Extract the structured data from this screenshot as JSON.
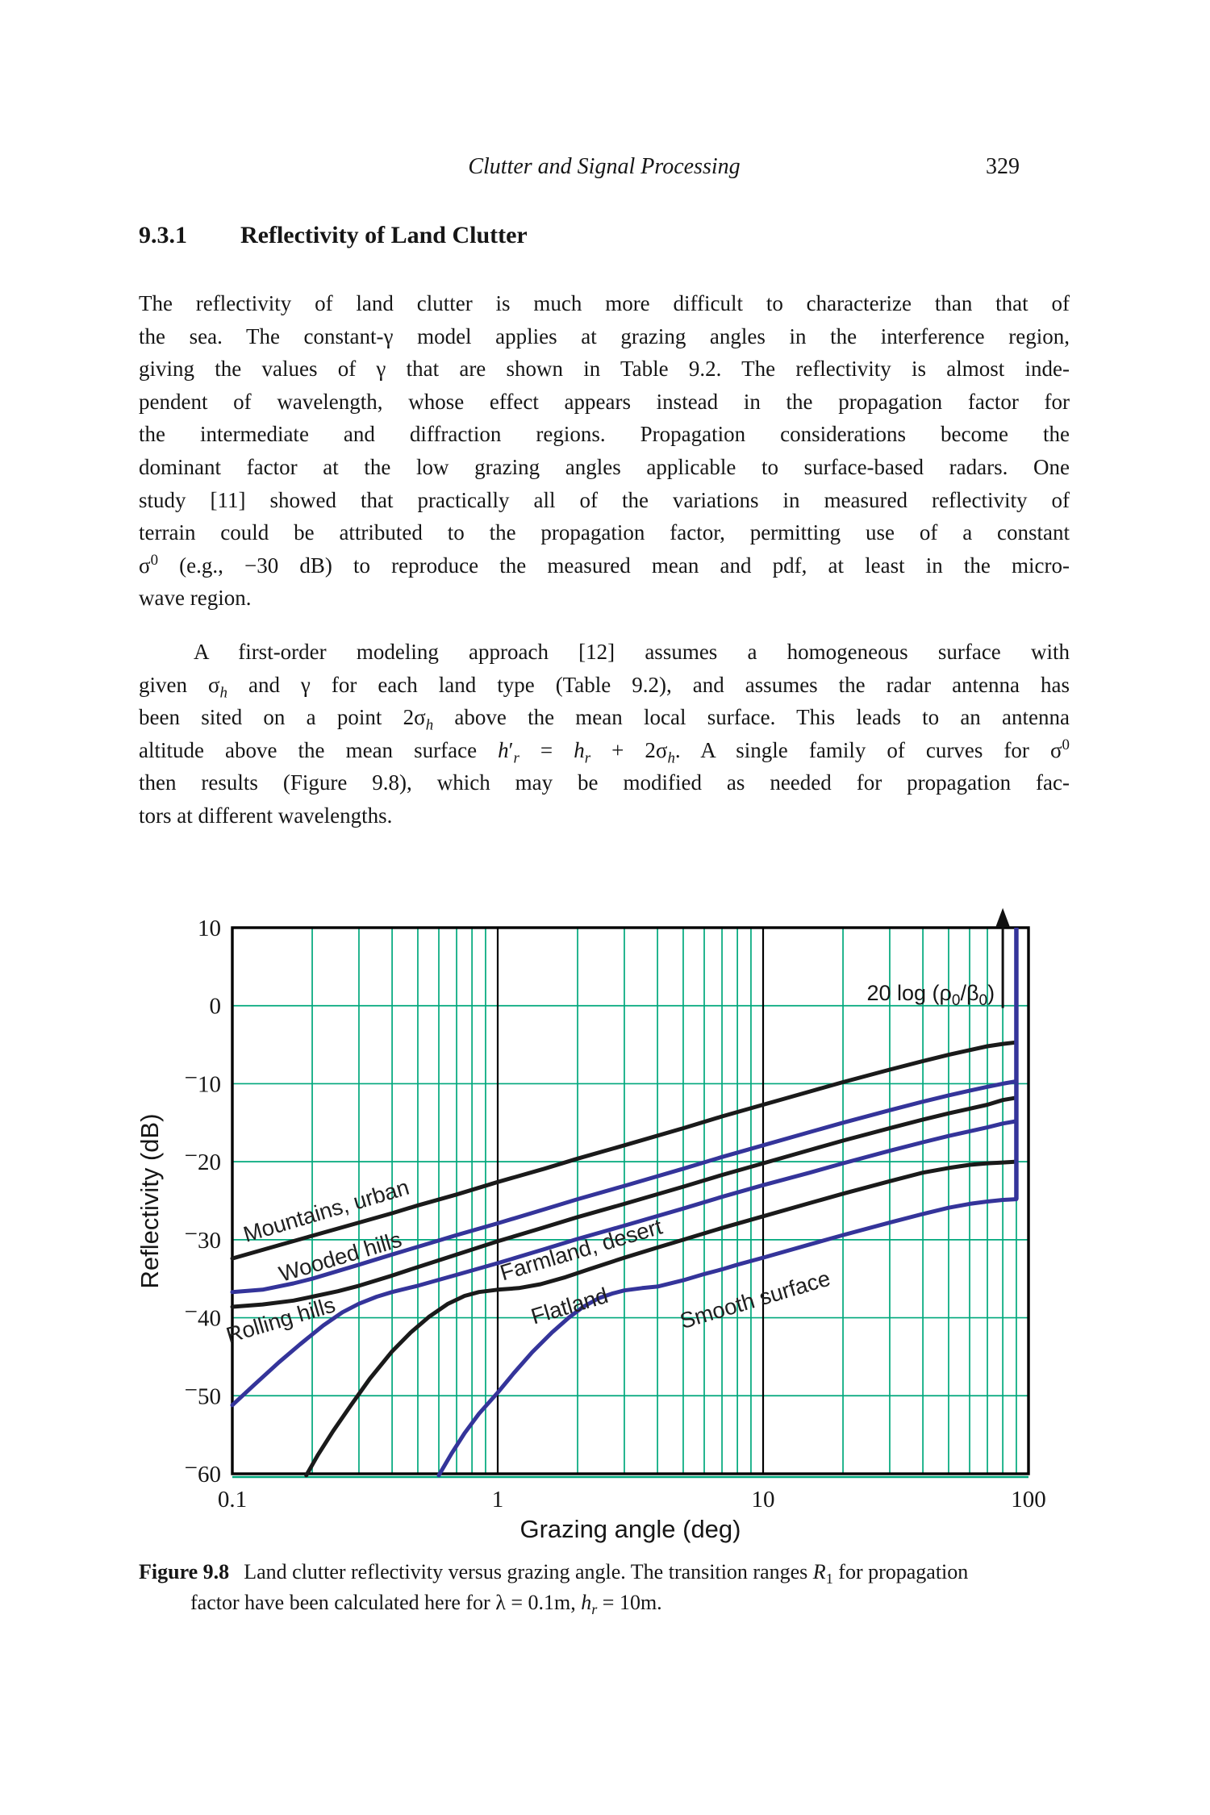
{
  "page_header": {
    "running_title": "Clutter and Signal Processing",
    "page_number": "329"
  },
  "section": {
    "number": "9.3.1",
    "title": "Reflectivity of Land Clutter"
  },
  "body": {
    "paragraph1_lines": [
      "The reflectivity of land clutter is much more difficult to characterize than that of",
      "the sea. The constant-γ model applies at grazing angles in the interference region,",
      "giving the values of γ that are shown in Table 9.2. The reflectivity is almost inde-",
      "pendent of wavelength, whose effect appears instead in the propagation factor for",
      "the intermediate and diffraction regions. Propagation considerations become the",
      "dominant factor at the low grazing angles applicable to surface-based radars. One",
      "study [11] showed that practically all of the variations in measured reflectivity of",
      "terrain could be attributed to the propagation factor, permitting use of a constant",
      "σ<sup>0</sup> (e.g., −30 dB) to reproduce the measured mean and pdf, at least in the micro-",
      "wave region."
    ],
    "paragraph2_lines": [
      "A first-order modeling approach [12] assumes a homogeneous surface with",
      "given σ<sub><i>h</i></sub> and γ for each land type (Table 9.2), and assumes the radar antenna has",
      "been sited on a point 2σ<sub><i>h</i></sub> above the mean local surface. This leads to an antenna",
      "altitude above the mean surface <i>h</i>′<sub><i>r</i></sub> = <i>h</i><sub><i>r</i></sub> + 2σ<sub><i>h</i></sub>. A single family of curves for σ<sup>0</sup>",
      "then results (Figure 9.8), which may be modified as needed for propagation fac-",
      "tors at different wavelengths."
    ]
  },
  "caption": {
    "label": "Figure 9.8",
    "line1": "Land clutter reflectivity versus grazing angle. The transition ranges <i>R</i><sub>1</sub> for propagation",
    "line2": "factor have been calculated here for λ = 0.1m, <i>h</i><sub><i>r</i></sub> = 10m."
  },
  "chart_data": {
    "type": "line",
    "title": "",
    "xlabel": "Grazing angle (deg)",
    "ylabel": "Reflectivity (dB)",
    "x_scale": "log",
    "xlim": [
      0.1,
      100
    ],
    "ylim": [
      -60,
      10
    ],
    "x_ticks": [
      "0.1",
      "1",
      "10",
      "100"
    ],
    "y_ticks": [
      10,
      0,
      -10,
      -20,
      -30,
      -40,
      -50,
      -60
    ],
    "grid": {
      "color": "#00a87c",
      "h_lines": [
        0,
        -10,
        -20,
        -30,
        -40,
        -50
      ],
      "minor_multiples": [
        2,
        3,
        4,
        5,
        6,
        7,
        8,
        9
      ],
      "decade_lines": [
        1,
        10
      ],
      "decade_line_color": "#000000"
    },
    "colors": {
      "black_curve": "#1a1a1a",
      "navy_curve": "#34349a",
      "border": "#000000"
    },
    "annotation": {
      "text_parts": [
        {
          "t": "20 log (ρ"
        },
        {
          "t": "0",
          "sub": true
        },
        {
          "t": "/β"
        },
        {
          "t": "0",
          "sub": true
        },
        {
          "t": ")"
        }
      ],
      "arrow": {
        "x_deg": 80,
        "from_db": -0.3,
        "to_db": 8.8
      }
    },
    "right_jump_line": {
      "x_deg": 90,
      "from_db": -24.8,
      "to_db": 10
    },
    "series": [
      {
        "name": "Mountains, urban",
        "color": "black",
        "label_pos": {
          "deg": 0.23,
          "db": -27.2,
          "rot": -16.5
        },
        "points": [
          [
            0.1,
            -32.4
          ],
          [
            0.15,
            -30.7
          ],
          [
            0.2,
            -29.5
          ],
          [
            0.3,
            -27.8
          ],
          [
            0.4,
            -26.6
          ],
          [
            0.5,
            -25.6
          ],
          [
            0.7,
            -24.2
          ],
          [
            1,
            -22.6
          ],
          [
            1.5,
            -20.9
          ],
          [
            2,
            -19.6
          ],
          [
            3,
            -17.9
          ],
          [
            5,
            -15.7
          ],
          [
            7,
            -14.2
          ],
          [
            10,
            -12.7
          ],
          [
            15,
            -11.0
          ],
          [
            20,
            -9.8
          ],
          [
            30,
            -8.2
          ],
          [
            40,
            -7.1
          ],
          [
            50,
            -6.3
          ],
          [
            60,
            -5.7
          ],
          [
            70,
            -5.2
          ],
          [
            80,
            -4.9
          ],
          [
            90,
            -4.7
          ]
        ]
      },
      {
        "name": "Wooded hills",
        "color": "navy",
        "label_pos": {
          "deg": 0.26,
          "db": -33.1,
          "rot": -16.5
        },
        "points": [
          [
            0.1,
            -36.7
          ],
          [
            0.13,
            -36.4
          ],
          [
            0.17,
            -35.6
          ],
          [
            0.2,
            -35.0
          ],
          [
            0.3,
            -33.2
          ],
          [
            0.4,
            -31.9
          ],
          [
            0.5,
            -30.9
          ],
          [
            0.7,
            -29.4
          ],
          [
            1,
            -27.9
          ],
          [
            1.5,
            -26.1
          ],
          [
            2,
            -24.8
          ],
          [
            3,
            -23.1
          ],
          [
            5,
            -20.9
          ],
          [
            7,
            -19.4
          ],
          [
            10,
            -17.9
          ],
          [
            15,
            -16.2
          ],
          [
            20,
            -15.0
          ],
          [
            30,
            -13.4
          ],
          [
            40,
            -12.3
          ],
          [
            50,
            -11.5
          ],
          [
            60,
            -10.9
          ],
          [
            70,
            -10.4
          ],
          [
            80,
            -10.0
          ],
          [
            90,
            -9.7
          ]
        ]
      },
      {
        "name": "Rolling hills",
        "color": "black",
        "label_pos": {
          "deg": 0.155,
          "db": -41.2,
          "rot": -16.5
        },
        "points": [
          [
            0.1,
            -38.6
          ],
          [
            0.13,
            -38.3
          ],
          [
            0.17,
            -37.8
          ],
          [
            0.2,
            -37.3
          ],
          [
            0.25,
            -36.6
          ],
          [
            0.3,
            -35.9
          ],
          [
            0.4,
            -34.6
          ],
          [
            0.5,
            -33.5
          ],
          [
            0.7,
            -31.9
          ],
          [
            1,
            -30.2
          ],
          [
            1.5,
            -28.4
          ],
          [
            2,
            -27.1
          ],
          [
            3,
            -25.4
          ],
          [
            5,
            -23.2
          ],
          [
            7,
            -21.7
          ],
          [
            10,
            -20.2
          ],
          [
            15,
            -18.5
          ],
          [
            20,
            -17.3
          ],
          [
            30,
            -15.7
          ],
          [
            40,
            -14.6
          ],
          [
            50,
            -13.8
          ],
          [
            60,
            -13.2
          ],
          [
            70,
            -12.7
          ],
          [
            80,
            -12.1
          ],
          [
            90,
            -11.8
          ]
        ]
      },
      {
        "name": "Farmland, desert",
        "color": "navy",
        "label_pos": {
          "deg": 2.1,
          "db": -32.2,
          "rot": -16.5
        },
        "points": [
          [
            0.1,
            -51.2
          ],
          [
            0.12,
            -48.7
          ],
          [
            0.15,
            -45.7
          ],
          [
            0.18,
            -43.4
          ],
          [
            0.22,
            -41.0
          ],
          [
            0.26,
            -39.3
          ],
          [
            0.3,
            -38.2
          ],
          [
            0.35,
            -37.3
          ],
          [
            0.4,
            -36.7
          ],
          [
            0.5,
            -35.9
          ],
          [
            0.7,
            -34.5
          ],
          [
            1,
            -33.0
          ],
          [
            1.5,
            -31.2
          ],
          [
            2,
            -29.9
          ],
          [
            3,
            -28.2
          ],
          [
            5,
            -26.0
          ],
          [
            7,
            -24.5
          ],
          [
            10,
            -23.0
          ],
          [
            15,
            -21.4
          ],
          [
            20,
            -20.2
          ],
          [
            30,
            -18.6
          ],
          [
            40,
            -17.5
          ],
          [
            50,
            -16.7
          ],
          [
            60,
            -16.1
          ],
          [
            70,
            -15.6
          ],
          [
            80,
            -15.1
          ],
          [
            90,
            -14.8
          ]
        ]
      },
      {
        "name": "Flatland",
        "color": "black",
        "label_pos": {
          "deg": 1.9,
          "db": -39.4,
          "rot": -16.5
        },
        "points": [
          [
            0.19,
            -60.2
          ],
          [
            0.21,
            -57.6
          ],
          [
            0.24,
            -54.5
          ],
          [
            0.28,
            -51.2
          ],
          [
            0.33,
            -47.8
          ],
          [
            0.4,
            -44.3
          ],
          [
            0.47,
            -41.9
          ],
          [
            0.55,
            -39.9
          ],
          [
            0.65,
            -38.2
          ],
          [
            0.75,
            -37.2
          ],
          [
            0.85,
            -36.7
          ],
          [
            1,
            -36.4
          ],
          [
            1.2,
            -36.2
          ],
          [
            1.45,
            -35.7
          ],
          [
            1.8,
            -34.8
          ],
          [
            2.2,
            -33.8
          ],
          [
            3,
            -32.3
          ],
          [
            4,
            -31.0
          ],
          [
            5,
            -30.0
          ],
          [
            7,
            -28.5
          ],
          [
            10,
            -27.0
          ],
          [
            15,
            -25.3
          ],
          [
            20,
            -24.1
          ],
          [
            30,
            -22.5
          ],
          [
            40,
            -21.4
          ],
          [
            50,
            -20.8
          ],
          [
            60,
            -20.4
          ],
          [
            70,
            -20.2
          ],
          [
            80,
            -20.1
          ],
          [
            90,
            -20.0
          ]
        ]
      },
      {
        "name": "Smooth surface",
        "color": "navy",
        "label_pos": {
          "deg": 9.5,
          "db": -38.6,
          "rot": -16.5
        },
        "points": [
          [
            0.6,
            -60.2
          ],
          [
            0.67,
            -57.4
          ],
          [
            0.75,
            -54.8
          ],
          [
            0.85,
            -52.3
          ],
          [
            1,
            -49.6
          ],
          [
            1.15,
            -47.1
          ],
          [
            1.35,
            -44.4
          ],
          [
            1.6,
            -41.9
          ],
          [
            1.85,
            -40.0
          ],
          [
            2.1,
            -38.6
          ],
          [
            2.4,
            -37.5
          ],
          [
            2.7,
            -36.9
          ],
          [
            3,
            -36.5
          ],
          [
            3.5,
            -36.2
          ],
          [
            4,
            -36.0
          ],
          [
            5,
            -35.2
          ],
          [
            6,
            -34.4
          ],
          [
            7,
            -33.8
          ],
          [
            8,
            -33.2
          ],
          [
            10,
            -32.3
          ],
          [
            15,
            -30.6
          ],
          [
            20,
            -29.4
          ],
          [
            30,
            -27.8
          ],
          [
            40,
            -26.7
          ],
          [
            50,
            -25.9
          ],
          [
            60,
            -25.4
          ],
          [
            70,
            -25.1
          ],
          [
            80,
            -24.9
          ],
          [
            90,
            -24.8
          ]
        ]
      }
    ]
  }
}
